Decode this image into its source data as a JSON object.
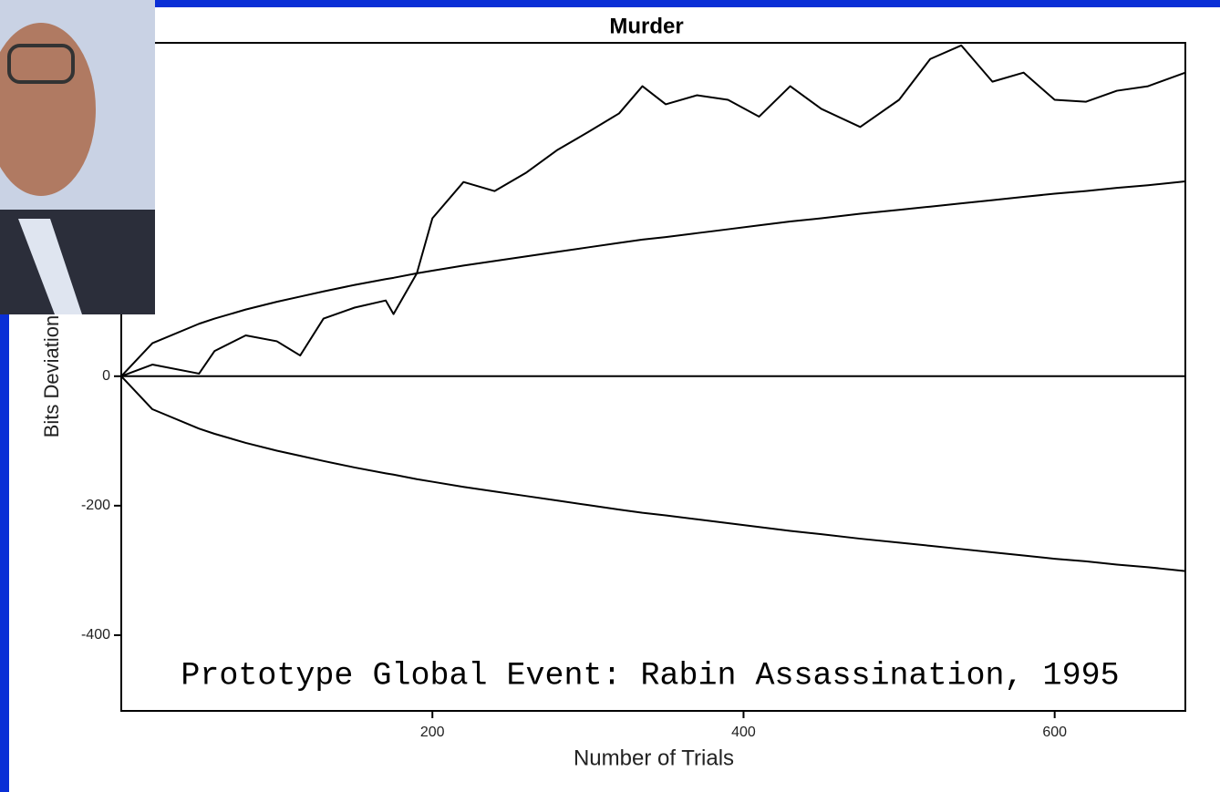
{
  "chart_data": {
    "type": "line",
    "title": "Murder",
    "x_label": "Number of Trials",
    "y_label": "Bits Deviation",
    "annotation": "Prototype Global Event: Rabin Assassination, 1995",
    "x": [
      0,
      20,
      50,
      60,
      80,
      100,
      115,
      130,
      150,
      170,
      175,
      190,
      200,
      220,
      240,
      260,
      280,
      300,
      320,
      335,
      350,
      370,
      390,
      410,
      430,
      450,
      475,
      500,
      520,
      540,
      560,
      580,
      600,
      620,
      640,
      660,
      684
    ],
    "series": [
      {
        "color": "#000000",
        "values": [
          0,
          18,
          4,
          39,
          63,
          54,
          32,
          89,
          106,
          117,
          96,
          159,
          244,
          300,
          286,
          314,
          349,
          377,
          406,
          448,
          420,
          434,
          427,
          401,
          448,
          413,
          385,
          427,
          490,
          511,
          455,
          469,
          427,
          424,
          441,
          448,
          469
        ]
      },
      {
        "color": "#000000",
        "values": [
          0,
          51,
          81,
          89,
          103,
          115,
          123,
          131,
          141,
          150,
          152,
          159,
          163,
          171,
          178,
          185,
          192,
          199,
          206,
          211,
          215,
          221,
          227,
          233,
          239,
          244,
          251,
          257,
          262,
          267,
          272,
          277,
          282,
          286,
          291,
          295,
          301
        ]
      },
      {
        "color": "#000000",
        "values": [
          0,
          -51,
          -81,
          -89,
          -103,
          -115,
          -123,
          -131,
          -141,
          -150,
          -152,
          -159,
          -163,
          -171,
          -178,
          -185,
          -192,
          -199,
          -206,
          -211,
          -215,
          -221,
          -227,
          -233,
          -239,
          -244,
          -251,
          -257,
          -262,
          -267,
          -272,
          -277,
          -282,
          -286,
          -291,
          -295,
          -301
        ]
      }
    ],
    "xlim": [
      0,
      684
    ],
    "xticks": [
      200,
      400,
      600
    ],
    "ylim": [
      -517,
      515
    ],
    "yticks": [
      -400,
      -200,
      0
    ]
  }
}
